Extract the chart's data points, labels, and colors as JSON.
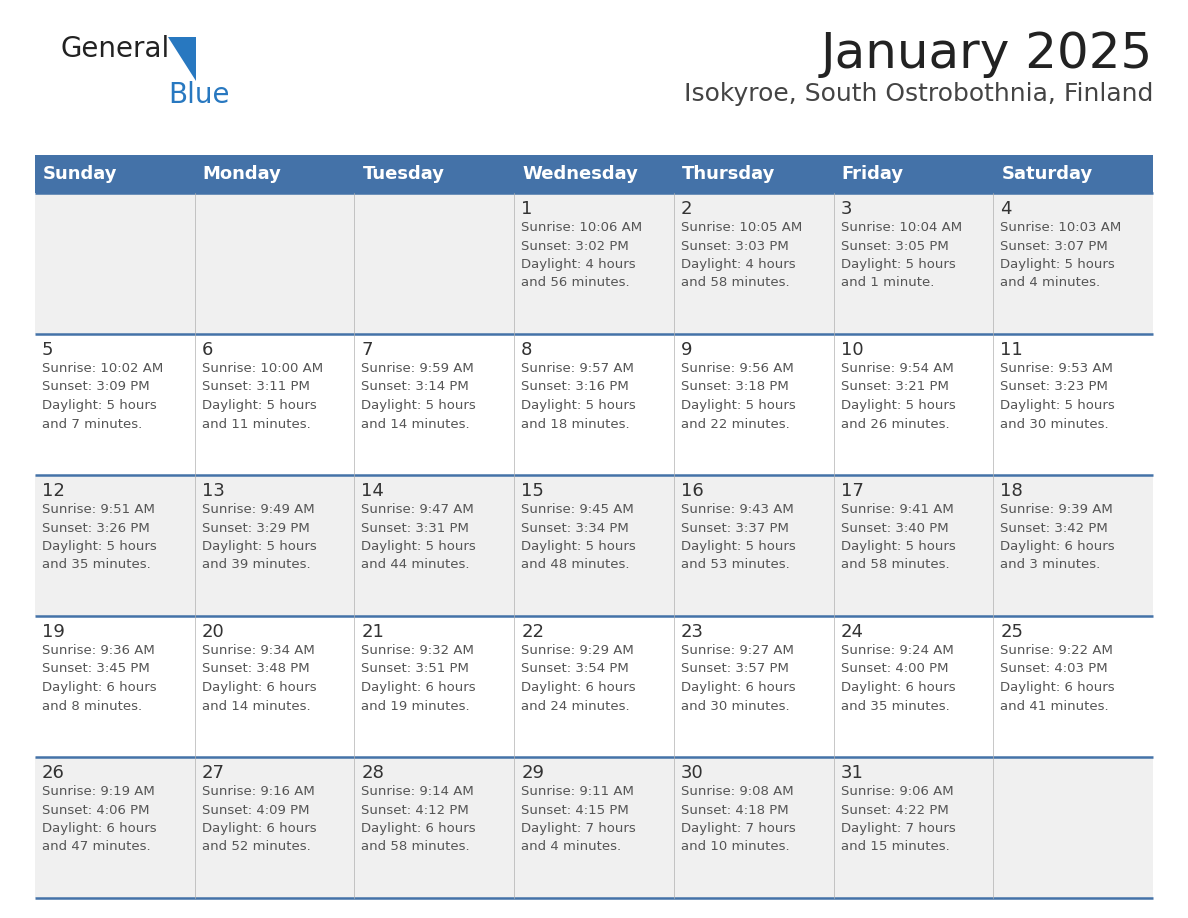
{
  "title": "January 2025",
  "subtitle": "Isokyroe, South Ostrobothnia, Finland",
  "header_bg": "#4472a8",
  "header_text_color": "#ffffff",
  "cell_bg_even": "#f0f0f0",
  "cell_bg_odd": "#ffffff",
  "cell_text_color": "#555555",
  "day_number_color": "#333333",
  "grid_color": "#4472a8",
  "days_of_week": [
    "Sunday",
    "Monday",
    "Tuesday",
    "Wednesday",
    "Thursday",
    "Friday",
    "Saturday"
  ],
  "weeks": [
    [
      {
        "day": null,
        "info": null
      },
      {
        "day": null,
        "info": null
      },
      {
        "day": null,
        "info": null
      },
      {
        "day": 1,
        "info": "Sunrise: 10:06 AM\nSunset: 3:02 PM\nDaylight: 4 hours\nand 56 minutes."
      },
      {
        "day": 2,
        "info": "Sunrise: 10:05 AM\nSunset: 3:03 PM\nDaylight: 4 hours\nand 58 minutes."
      },
      {
        "day": 3,
        "info": "Sunrise: 10:04 AM\nSunset: 3:05 PM\nDaylight: 5 hours\nand 1 minute."
      },
      {
        "day": 4,
        "info": "Sunrise: 10:03 AM\nSunset: 3:07 PM\nDaylight: 5 hours\nand 4 minutes."
      }
    ],
    [
      {
        "day": 5,
        "info": "Sunrise: 10:02 AM\nSunset: 3:09 PM\nDaylight: 5 hours\nand 7 minutes."
      },
      {
        "day": 6,
        "info": "Sunrise: 10:00 AM\nSunset: 3:11 PM\nDaylight: 5 hours\nand 11 minutes."
      },
      {
        "day": 7,
        "info": "Sunrise: 9:59 AM\nSunset: 3:14 PM\nDaylight: 5 hours\nand 14 minutes."
      },
      {
        "day": 8,
        "info": "Sunrise: 9:57 AM\nSunset: 3:16 PM\nDaylight: 5 hours\nand 18 minutes."
      },
      {
        "day": 9,
        "info": "Sunrise: 9:56 AM\nSunset: 3:18 PM\nDaylight: 5 hours\nand 22 minutes."
      },
      {
        "day": 10,
        "info": "Sunrise: 9:54 AM\nSunset: 3:21 PM\nDaylight: 5 hours\nand 26 minutes."
      },
      {
        "day": 11,
        "info": "Sunrise: 9:53 AM\nSunset: 3:23 PM\nDaylight: 5 hours\nand 30 minutes."
      }
    ],
    [
      {
        "day": 12,
        "info": "Sunrise: 9:51 AM\nSunset: 3:26 PM\nDaylight: 5 hours\nand 35 minutes."
      },
      {
        "day": 13,
        "info": "Sunrise: 9:49 AM\nSunset: 3:29 PM\nDaylight: 5 hours\nand 39 minutes."
      },
      {
        "day": 14,
        "info": "Sunrise: 9:47 AM\nSunset: 3:31 PM\nDaylight: 5 hours\nand 44 minutes."
      },
      {
        "day": 15,
        "info": "Sunrise: 9:45 AM\nSunset: 3:34 PM\nDaylight: 5 hours\nand 48 minutes."
      },
      {
        "day": 16,
        "info": "Sunrise: 9:43 AM\nSunset: 3:37 PM\nDaylight: 5 hours\nand 53 minutes."
      },
      {
        "day": 17,
        "info": "Sunrise: 9:41 AM\nSunset: 3:40 PM\nDaylight: 5 hours\nand 58 minutes."
      },
      {
        "day": 18,
        "info": "Sunrise: 9:39 AM\nSunset: 3:42 PM\nDaylight: 6 hours\nand 3 minutes."
      }
    ],
    [
      {
        "day": 19,
        "info": "Sunrise: 9:36 AM\nSunset: 3:45 PM\nDaylight: 6 hours\nand 8 minutes."
      },
      {
        "day": 20,
        "info": "Sunrise: 9:34 AM\nSunset: 3:48 PM\nDaylight: 6 hours\nand 14 minutes."
      },
      {
        "day": 21,
        "info": "Sunrise: 9:32 AM\nSunset: 3:51 PM\nDaylight: 6 hours\nand 19 minutes."
      },
      {
        "day": 22,
        "info": "Sunrise: 9:29 AM\nSunset: 3:54 PM\nDaylight: 6 hours\nand 24 minutes."
      },
      {
        "day": 23,
        "info": "Sunrise: 9:27 AM\nSunset: 3:57 PM\nDaylight: 6 hours\nand 30 minutes."
      },
      {
        "day": 24,
        "info": "Sunrise: 9:24 AM\nSunset: 4:00 PM\nDaylight: 6 hours\nand 35 minutes."
      },
      {
        "day": 25,
        "info": "Sunrise: 9:22 AM\nSunset: 4:03 PM\nDaylight: 6 hours\nand 41 minutes."
      }
    ],
    [
      {
        "day": 26,
        "info": "Sunrise: 9:19 AM\nSunset: 4:06 PM\nDaylight: 6 hours\nand 47 minutes."
      },
      {
        "day": 27,
        "info": "Sunrise: 9:16 AM\nSunset: 4:09 PM\nDaylight: 6 hours\nand 52 minutes."
      },
      {
        "day": 28,
        "info": "Sunrise: 9:14 AM\nSunset: 4:12 PM\nDaylight: 6 hours\nand 58 minutes."
      },
      {
        "day": 29,
        "info": "Sunrise: 9:11 AM\nSunset: 4:15 PM\nDaylight: 7 hours\nand 4 minutes."
      },
      {
        "day": 30,
        "info": "Sunrise: 9:08 AM\nSunset: 4:18 PM\nDaylight: 7 hours\nand 10 minutes."
      },
      {
        "day": 31,
        "info": "Sunrise: 9:06 AM\nSunset: 4:22 PM\nDaylight: 7 hours\nand 15 minutes."
      },
      {
        "day": null,
        "info": null
      }
    ]
  ],
  "logo_general_color": "#222222",
  "logo_blue_color": "#2878c0",
  "title_fontsize": 36,
  "subtitle_fontsize": 18,
  "header_fontsize": 13,
  "day_number_fontsize": 13,
  "cell_info_fontsize": 9.5
}
